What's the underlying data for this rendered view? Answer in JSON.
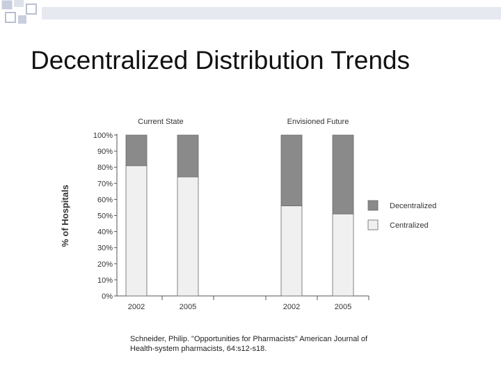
{
  "slide": {
    "title": "Decentralized Distribution Trends",
    "citation_line1": "Schneider, Philip. \"Opportunities for Pharmacists\" American Journal of",
    "citation_line2": "Health-system pharmacists, 64:s12-s18."
  },
  "colors": {
    "decentralized": "#8a8a8a",
    "centralized": "#f0f0f0",
    "outline": "#666666",
    "decoration": "#d7dbe6"
  },
  "chart_data": {
    "type": "bar",
    "stacked": true,
    "ylabel": "% of Hospitals",
    "ylim": [
      0,
      100
    ],
    "yticks": [
      "0%",
      "10%",
      "20%",
      "30%",
      "40%",
      "50%",
      "60%",
      "70%",
      "80%",
      "90%",
      "100%"
    ],
    "groups": [
      {
        "label": "Current State",
        "categories": [
          "2002",
          "2005"
        ]
      },
      {
        "label": "Envisioned Future",
        "categories": [
          "2002",
          "2005"
        ]
      }
    ],
    "series": [
      {
        "name": "Centralized",
        "values": [
          81,
          74,
          56,
          51
        ]
      },
      {
        "name": "Decentralized",
        "values": [
          19,
          26,
          44,
          49
        ]
      }
    ],
    "legend": [
      "Decentralized",
      "Centralized"
    ],
    "legend_position": "right"
  }
}
